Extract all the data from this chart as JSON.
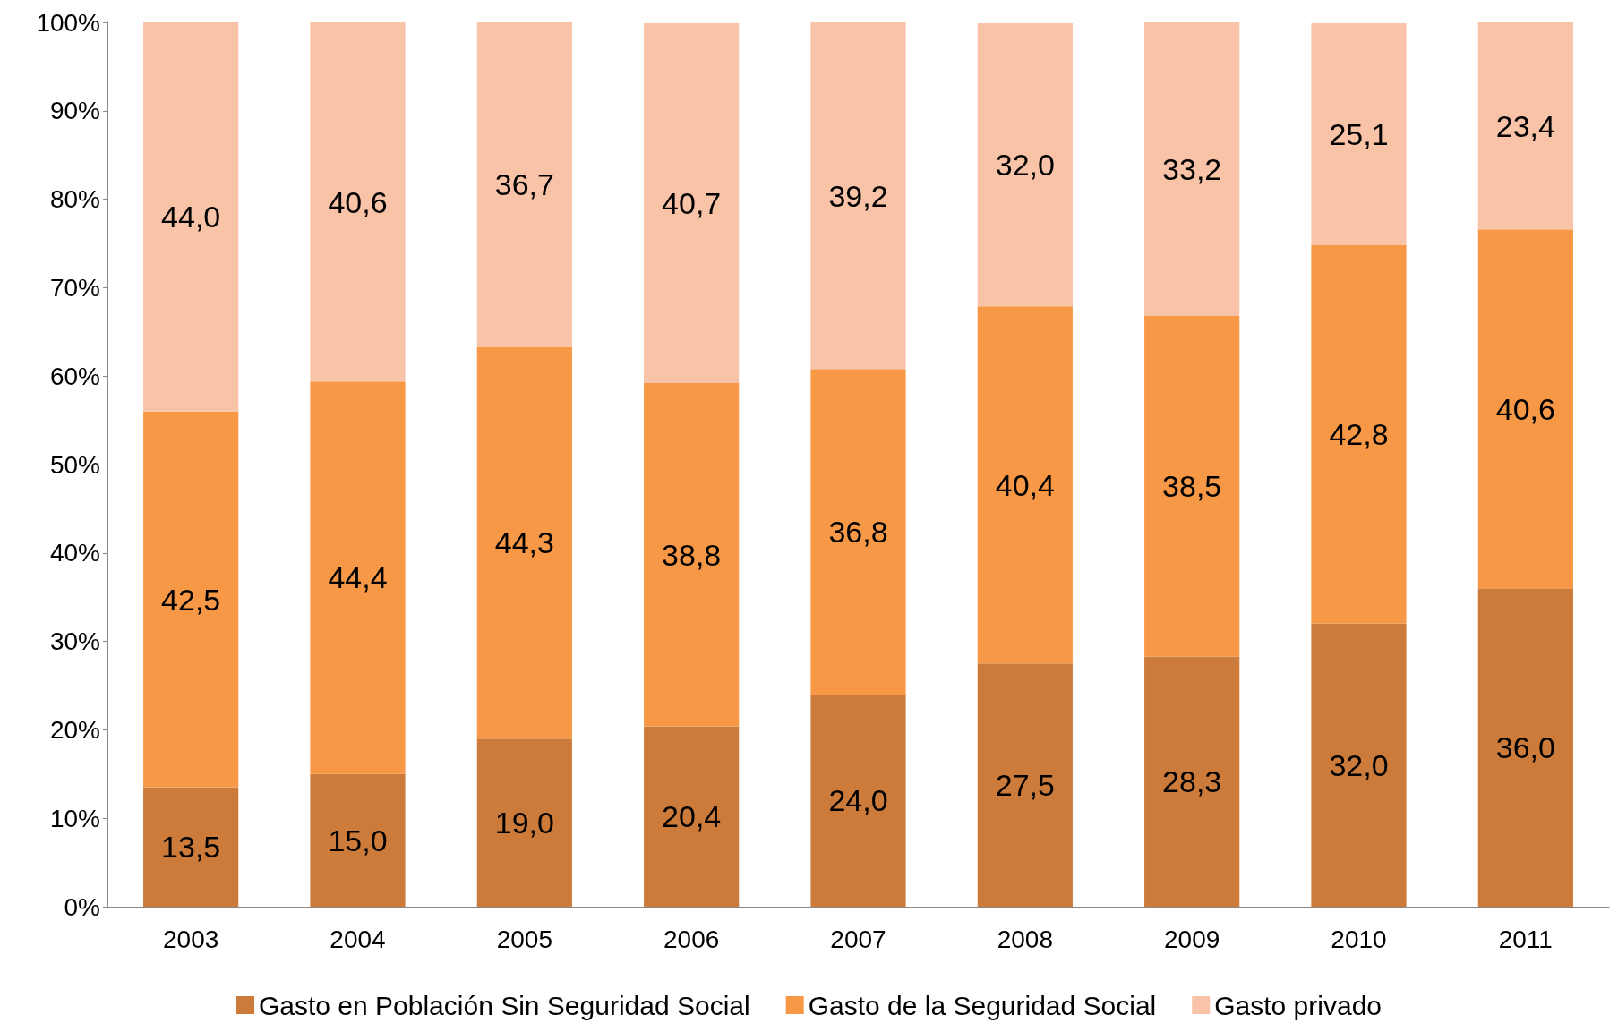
{
  "chart_data": {
    "type": "bar",
    "stacked": true,
    "categories": [
      "2003",
      "2004",
      "2005",
      "2006",
      "2007",
      "2008",
      "2009",
      "2010",
      "2011"
    ],
    "series": [
      {
        "name": "Gasto en Población Sin Seguridad Social",
        "color": "#cd7b3a",
        "values": [
          13.5,
          15.0,
          19.0,
          20.4,
          24.0,
          27.5,
          28.3,
          32.0,
          36.0
        ],
        "value_labels": [
          "13,5",
          "15,0",
          "19,0",
          "20,4",
          "24,0",
          "27,5",
          "28,3",
          "32,0",
          "36,0"
        ]
      },
      {
        "name": "Gasto de la Seguridad Social",
        "color": "#f79846",
        "values": [
          42.5,
          44.4,
          44.3,
          38.8,
          36.8,
          40.4,
          38.5,
          42.8,
          40.6
        ],
        "value_labels": [
          "42,5",
          "44,4",
          "44,3",
          "38,8",
          "36,8",
          "40,4",
          "38,5",
          "42,8",
          "40,6"
        ]
      },
      {
        "name": "Gasto privado",
        "color": "#f9c3a8",
        "values": [
          44.0,
          40.6,
          36.7,
          40.7,
          39.2,
          32.0,
          33.2,
          25.1,
          23.4
        ],
        "value_labels": [
          "44,0",
          "40,6",
          "36,7",
          "40,7",
          "39,2",
          "32,0",
          "33,2",
          "25,1",
          "23,4"
        ]
      }
    ],
    "ylim": [
      0,
      100
    ],
    "yticks": [
      {
        "value": 0,
        "label": "0%"
      },
      {
        "value": 10,
        "label": "10%"
      },
      {
        "value": 20,
        "label": "20%"
      },
      {
        "value": 30,
        "label": "30%"
      },
      {
        "value": 40,
        "label": "40%"
      },
      {
        "value": 50,
        "label": "50%"
      },
      {
        "value": 60,
        "label": "60%"
      },
      {
        "value": 70,
        "label": "70%"
      },
      {
        "value": 80,
        "label": "80%"
      },
      {
        "value": 90,
        "label": "90%"
      },
      {
        "value": 100,
        "label": "100%"
      }
    ],
    "grid": false,
    "legend": "bottom"
  }
}
